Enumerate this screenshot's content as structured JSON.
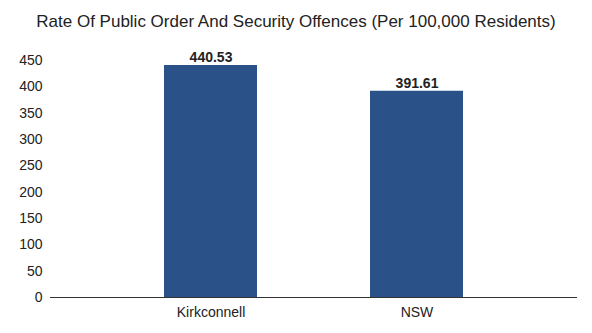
{
  "chart_data": {
    "type": "bar",
    "title": "Rate Of Public Order And Security Offences (Per 100,000 Residents)",
    "categories": [
      "Kirkconnell",
      "NSW"
    ],
    "values": [
      440.53,
      391.61
    ],
    "color": "#2b5189",
    "ylim": [
      0,
      450
    ],
    "yticks": [
      0,
      50,
      100,
      150,
      200,
      250,
      300,
      350,
      400,
      450
    ],
    "grid": false,
    "data_labels": true
  }
}
